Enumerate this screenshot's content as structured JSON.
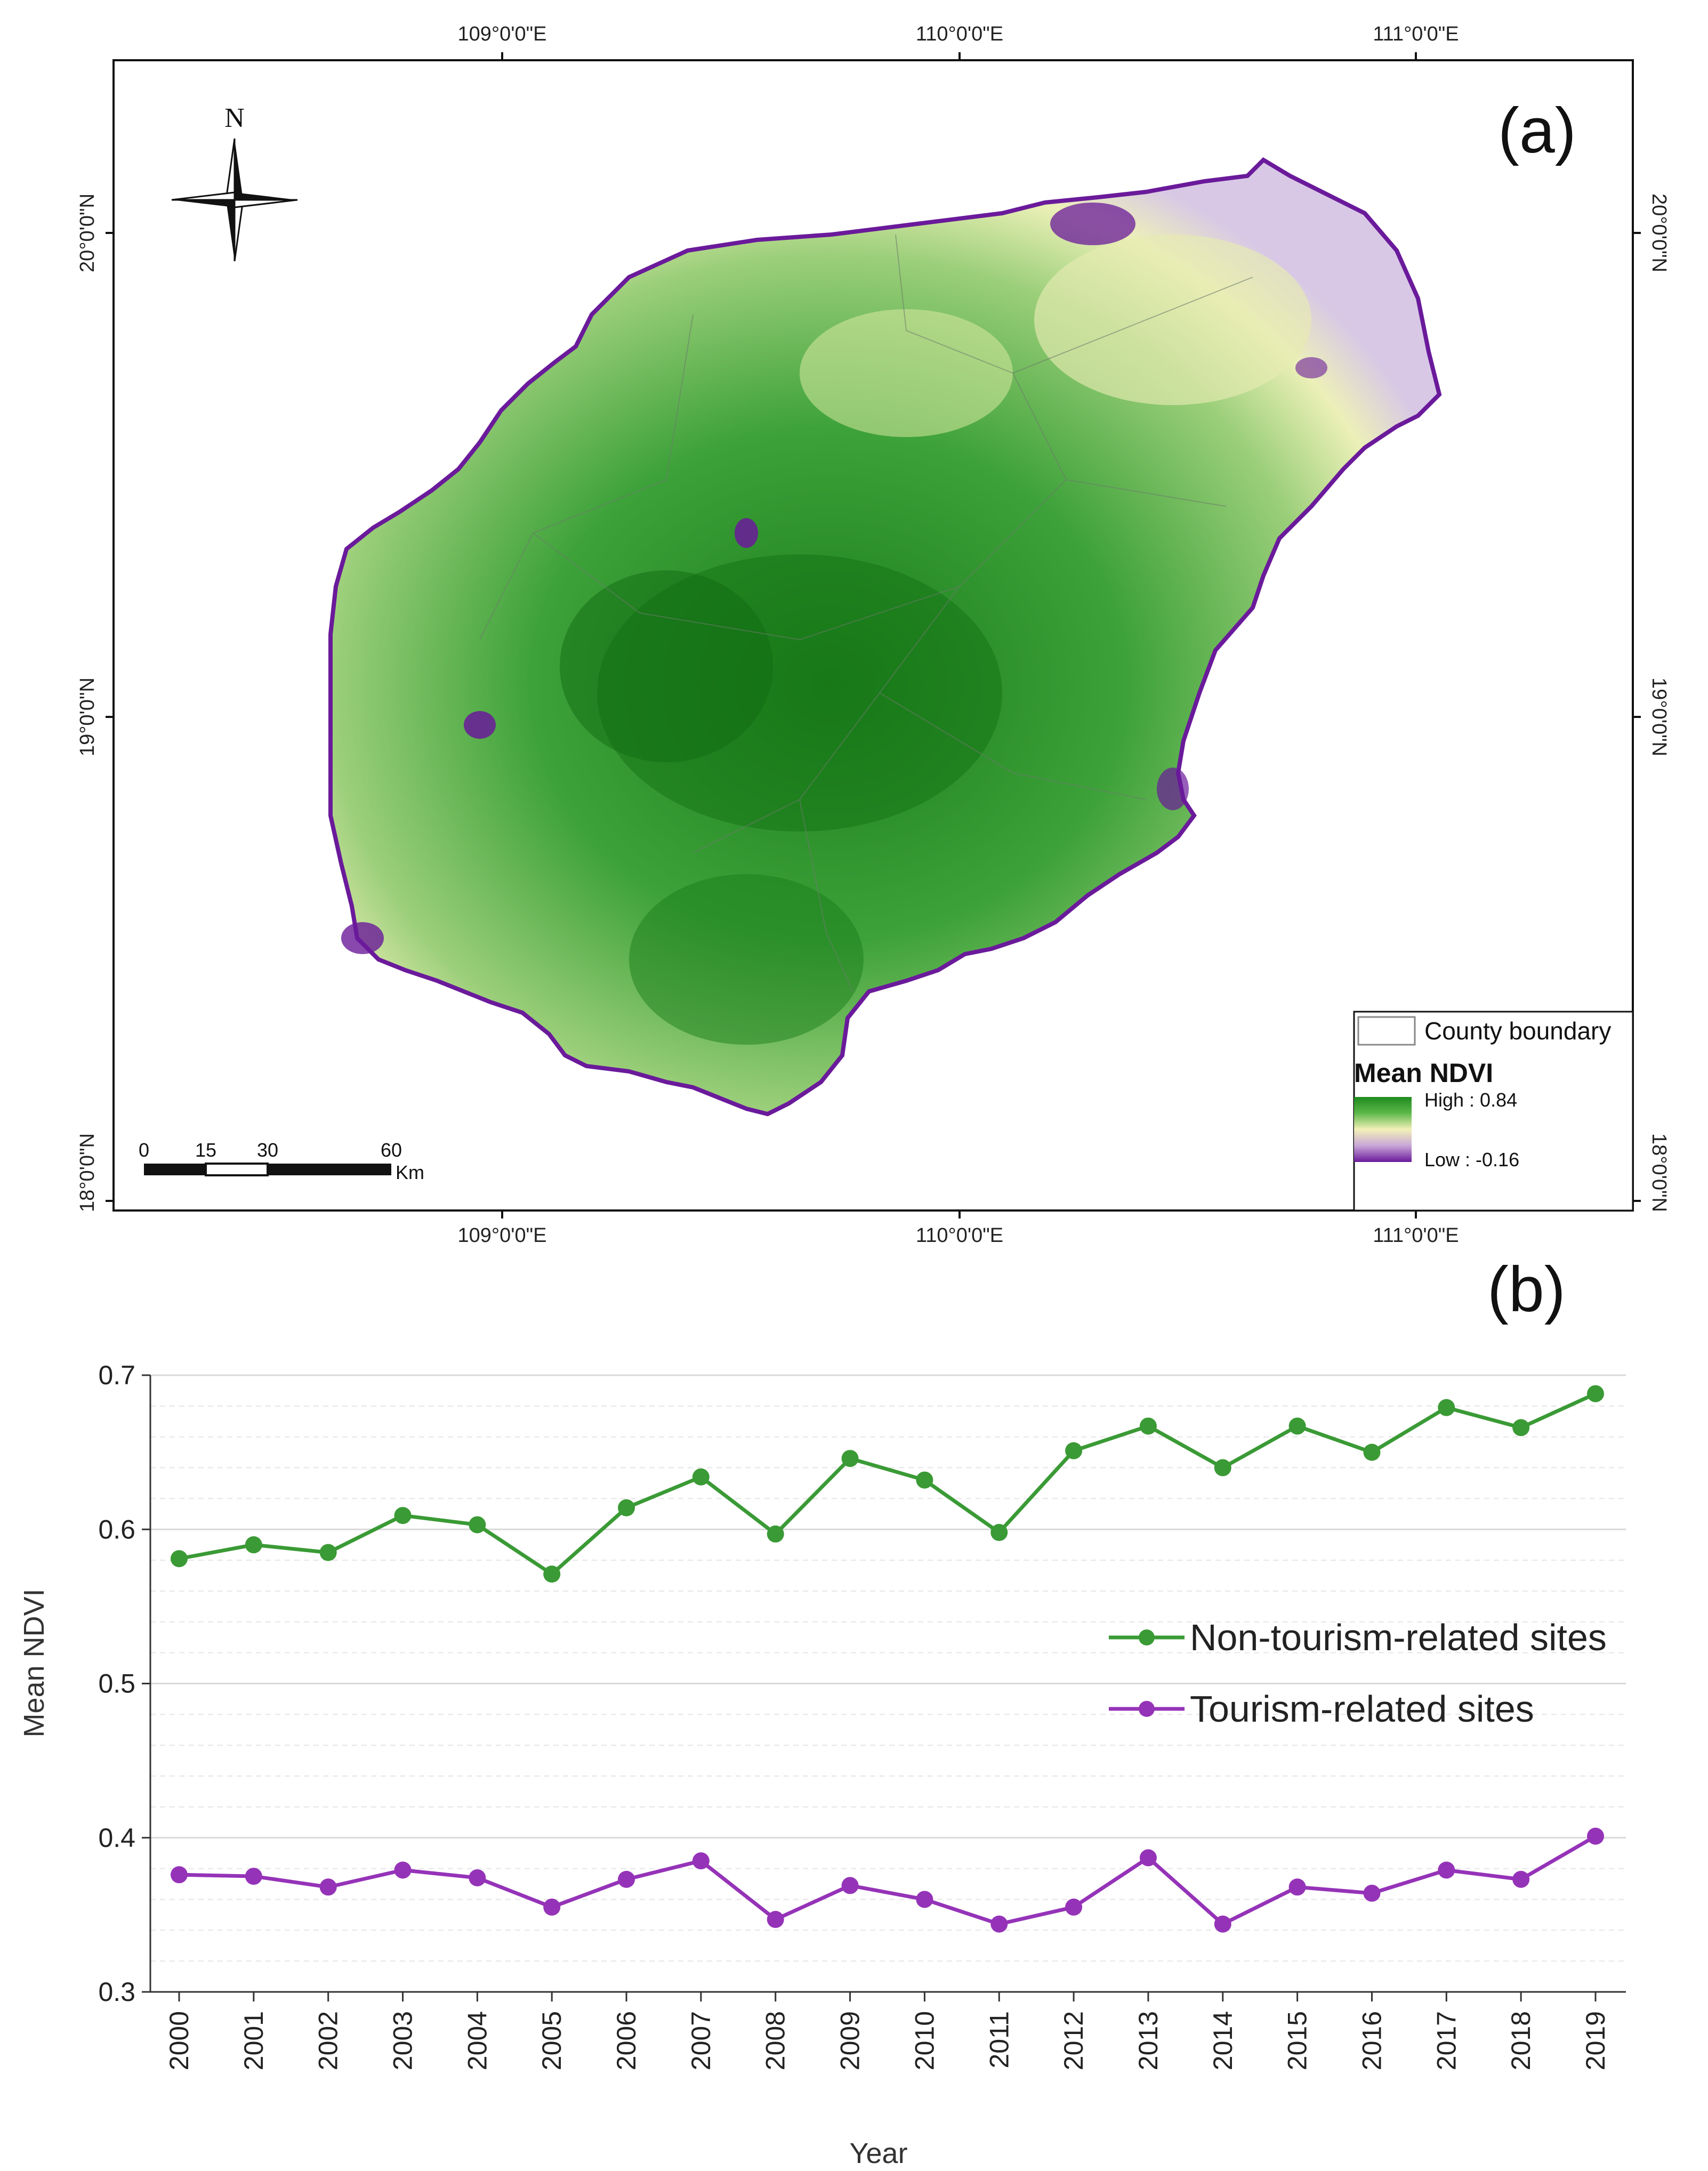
{
  "map": {
    "panel_label": "(a)",
    "north_label": "N",
    "lon_labels": [
      "109°0'0\"E",
      "110°0'0\"E",
      "111°0'0\"E"
    ],
    "lat_labels": [
      "20°0'0\"N",
      "19°0'0\"N",
      "18°0'0\"N"
    ],
    "scalebar": {
      "ticks": [
        "0",
        "15",
        "30",
        "60"
      ],
      "unit": "Km"
    },
    "legend": {
      "boundary_label": "County boundary",
      "title": "Mean NDVI",
      "high_label": "High : 0.84",
      "low_label": "Low : -0.16"
    },
    "colors": {
      "high": "#1e8a1e",
      "mid": "#f3f0b8",
      "low": "#6a1a9a"
    }
  },
  "chart_data": {
    "type": "line",
    "panel_label": "(b)",
    "title": "",
    "xlabel": "Year",
    "ylabel": "Mean NDVI",
    "x": [
      "2000",
      "2001",
      "2002",
      "2003",
      "2004",
      "2005",
      "2006",
      "2007",
      "2008",
      "2009",
      "2010",
      "2011",
      "2012",
      "2013",
      "2014",
      "2015",
      "2016",
      "2017",
      "2018",
      "2019"
    ],
    "ylim": [
      0.3,
      0.7
    ],
    "yticks": [
      "0.3",
      "0.4",
      "0.5",
      "0.6",
      "0.7"
    ],
    "legend_position": "center-right",
    "series": [
      {
        "name": "Non-tourism-related sites",
        "color": "#3a9a35",
        "values": [
          0.581,
          0.59,
          0.585,
          0.609,
          0.603,
          0.571,
          0.614,
          0.634,
          0.597,
          0.646,
          0.632,
          0.598,
          0.651,
          0.667,
          0.64,
          0.667,
          0.65,
          0.679,
          0.666,
          0.688
        ]
      },
      {
        "name": "Tourism-related sites",
        "color": "#9533b8",
        "values": [
          0.376,
          0.375,
          0.368,
          0.379,
          0.374,
          0.355,
          0.373,
          0.385,
          0.347,
          0.369,
          0.36,
          0.344,
          0.355,
          0.387,
          0.344,
          0.368,
          0.364,
          0.379,
          0.373,
          0.401
        ]
      }
    ]
  }
}
